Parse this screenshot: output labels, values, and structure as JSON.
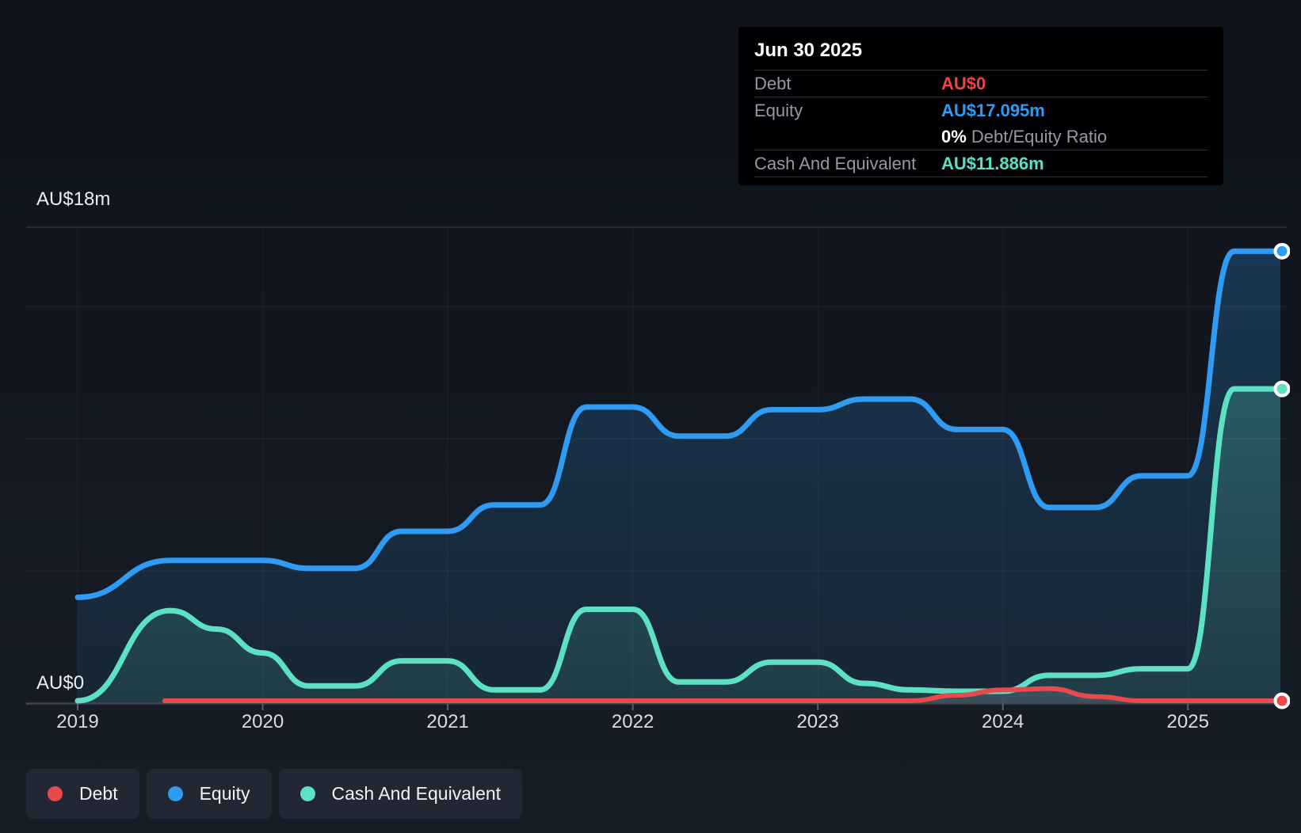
{
  "tooltip": {
    "date": "Jun 30 2025",
    "debt_label": "Debt",
    "debt_value": "AU$0",
    "equity_label": "Equity",
    "equity_value": "AU$17.095m",
    "ratio_value": "0%",
    "ratio_label": "Debt/Equity Ratio",
    "cash_label": "Cash And Equivalent",
    "cash_value": "AU$11.886m"
  },
  "y_axis": {
    "top_label": "AU$18m",
    "bottom_label": "AU$0"
  },
  "legend": {
    "debt_label": "Debt",
    "equity_label": "Equity",
    "cash_label": "Cash And Equivalent"
  },
  "colors": {
    "debt": "#e7494c",
    "equity": "#2f9bf2",
    "cash": "#5de1c3",
    "tooltip_debt": "#f04444",
    "tooltip_equity": "#2d9cf4",
    "tooltip_cash": "#57e2c4",
    "background": "#12171f"
  },
  "chart_data": {
    "type": "area",
    "y_unit": "AU$ millions",
    "ylim": [
      0,
      18
    ],
    "y_gridline_values": [
      5,
      10,
      15,
      18
    ],
    "x_ticks": [
      2019,
      2020,
      2021,
      2022,
      2023,
      2024,
      2025
    ],
    "x_range": [
      2019.0,
      2025.5
    ],
    "legend_position": "bottom-left",
    "series": [
      {
        "name": "Equity",
        "color": "#2f9bf2",
        "points": [
          [
            2019.0,
            4.0
          ],
          [
            2019.5,
            5.4
          ],
          [
            2020.0,
            5.4
          ],
          [
            2020.25,
            5.1
          ],
          [
            2020.5,
            5.1
          ],
          [
            2020.75,
            6.5
          ],
          [
            2021.0,
            6.5
          ],
          [
            2021.25,
            7.5
          ],
          [
            2021.5,
            7.5
          ],
          [
            2021.75,
            11.2
          ],
          [
            2022.0,
            11.2
          ],
          [
            2022.25,
            10.1
          ],
          [
            2022.5,
            10.1
          ],
          [
            2022.75,
            11.1
          ],
          [
            2023.0,
            11.1
          ],
          [
            2023.25,
            11.5
          ],
          [
            2023.5,
            11.5
          ],
          [
            2023.75,
            10.35
          ],
          [
            2024.0,
            10.35
          ],
          [
            2024.25,
            7.4
          ],
          [
            2024.5,
            7.4
          ],
          [
            2024.75,
            8.6
          ],
          [
            2025.0,
            8.6
          ],
          [
            2025.25,
            17.095
          ],
          [
            2025.5,
            17.095
          ]
        ]
      },
      {
        "name": "Cash And Equivalent",
        "color": "#5de1c3",
        "points": [
          [
            2019.0,
            0
          ],
          [
            2019.5,
            3.5
          ],
          [
            2019.75,
            2.8
          ],
          [
            2020.0,
            1.9
          ],
          [
            2020.25,
            0.65
          ],
          [
            2020.5,
            0.65
          ],
          [
            2020.75,
            1.6
          ],
          [
            2021.0,
            1.6
          ],
          [
            2021.25,
            0.5
          ],
          [
            2021.5,
            0.5
          ],
          [
            2021.75,
            3.55
          ],
          [
            2022.0,
            3.55
          ],
          [
            2022.25,
            0.8
          ],
          [
            2022.5,
            0.8
          ],
          [
            2022.75,
            1.55
          ],
          [
            2023.0,
            1.55
          ],
          [
            2023.25,
            0.75
          ],
          [
            2023.5,
            0.5
          ],
          [
            2023.75,
            0.45
          ],
          [
            2024.0,
            0.45
          ],
          [
            2024.25,
            1.05
          ],
          [
            2024.5,
            1.05
          ],
          [
            2024.75,
            1.3
          ],
          [
            2025.0,
            1.3
          ],
          [
            2025.25,
            11.886
          ],
          [
            2025.5,
            11.886
          ]
        ]
      },
      {
        "name": "Debt",
        "color": "#e7494c",
        "points": [
          [
            2019.47,
            0
          ],
          [
            2023.5,
            0
          ],
          [
            2023.75,
            0.3
          ],
          [
            2024.0,
            0.5
          ],
          [
            2024.25,
            0.55
          ],
          [
            2024.5,
            0.25
          ],
          [
            2024.75,
            0
          ],
          [
            2025.0,
            0
          ],
          [
            2025.25,
            0
          ],
          [
            2025.5,
            0
          ]
        ]
      }
    ]
  }
}
